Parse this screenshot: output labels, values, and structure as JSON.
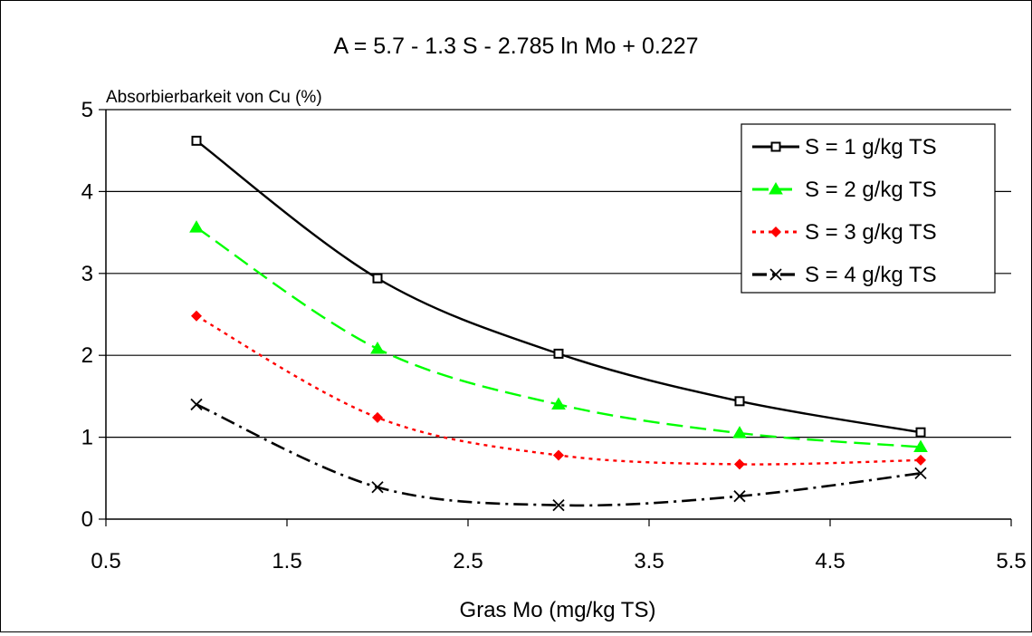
{
  "chart_data": {
    "type": "line",
    "title": "A = 5.7 - 1.3 S - 2.785 ln Mo + 0.227",
    "xlabel": "Gras Mo (mg/kg TS)",
    "ylabel": "Absorbierbarkeit von Cu (%)",
    "xlim": [
      0.5,
      5.5
    ],
    "ylim": [
      0,
      5
    ],
    "xticks": [
      "0.5",
      "1.5",
      "2.5",
      "3.5",
      "4.5",
      "5.5"
    ],
    "yticks": [
      "0",
      "1",
      "2",
      "3",
      "4",
      "5"
    ],
    "grid": "horizontal",
    "legend_position": "top-right",
    "x": [
      1,
      2,
      3,
      4,
      5
    ],
    "series": [
      {
        "name": "S = 1 g/kg TS",
        "values": [
          4.62,
          2.94,
          2.02,
          1.44,
          1.06
        ],
        "color": "#000000",
        "marker": "square",
        "dash": "solid"
      },
      {
        "name": "S = 2 g/kg TS",
        "values": [
          3.56,
          2.08,
          1.4,
          1.05,
          0.88
        ],
        "color": "#00ff00",
        "marker": "triangle",
        "dash": "dashed"
      },
      {
        "name": "S = 3 g/kg TS",
        "values": [
          2.48,
          1.24,
          0.78,
          0.67,
          0.72
        ],
        "color": "#ff0000",
        "marker": "diamond",
        "dash": "dotted"
      },
      {
        "name": "S = 4 g/kg TS",
        "values": [
          1.4,
          0.39,
          0.17,
          0.28,
          0.56
        ],
        "color": "#000000",
        "marker": "x",
        "dash": "dashdot"
      }
    ]
  }
}
